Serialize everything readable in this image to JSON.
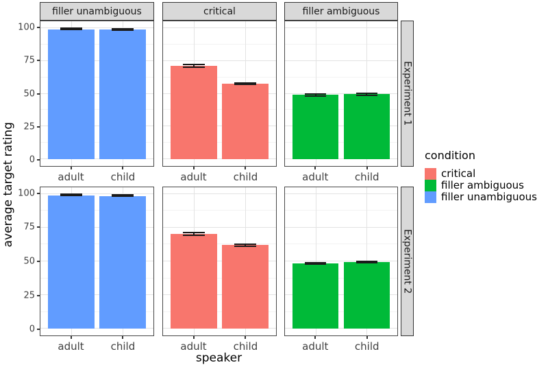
{
  "legend": {
    "title": "condition",
    "entries": [
      {
        "label": "critical",
        "color": "#F8766D"
      },
      {
        "label": "filler ambiguous",
        "color": "#00BA38"
      },
      {
        "label": "filler unambiguous",
        "color": "#619CFF"
      }
    ]
  },
  "chart_data": {
    "type": "bar",
    "title": "",
    "xlabel": "speaker",
    "ylabel": "average target rating",
    "ylim": [
      0,
      100
    ],
    "y_ticks": [
      0,
      25,
      50,
      75,
      100
    ],
    "y_minor_ticks": [
      12.5,
      37.5,
      62.5,
      87.5
    ],
    "categories": [
      "adult",
      "child"
    ],
    "facet_cols": [
      "filler unambiguous",
      "critical",
      "filler ambiguous"
    ],
    "facet_rows": [
      "Experiment 1",
      "Experiment 2"
    ],
    "legend_position": "right",
    "grid": true,
    "error_bars": true,
    "colors": {
      "critical": "#F8766D",
      "filler ambiguous": "#00BA38",
      "filler unambiguous": "#619CFF"
    },
    "panels": [
      {
        "facet_row": "Experiment 1",
        "facet_col": "filler unambiguous",
        "condition": "filler unambiguous",
        "values": [
          99,
          98.5
        ],
        "errors": [
          0.8,
          0.8
        ]
      },
      {
        "facet_row": "Experiment 1",
        "facet_col": "critical",
        "condition": "critical",
        "values": [
          71,
          57.5
        ],
        "errors": [
          1.5,
          1.2
        ]
      },
      {
        "facet_row": "Experiment 1",
        "facet_col": "filler ambiguous",
        "condition": "filler ambiguous",
        "values": [
          49,
          49.5
        ],
        "errors": [
          1.3,
          1.3
        ]
      },
      {
        "facet_row": "Experiment 2",
        "facet_col": "filler unambiguous",
        "condition": "filler unambiguous",
        "values": [
          99,
          98.6
        ],
        "errors": [
          0.6,
          0.6
        ]
      },
      {
        "facet_row": "Experiment 2",
        "facet_col": "critical",
        "condition": "critical",
        "values": [
          70.5,
          62
        ],
        "errors": [
          1.4,
          1.4
        ]
      },
      {
        "facet_row": "Experiment 2",
        "facet_col": "filler ambiguous",
        "condition": "filler ambiguous",
        "values": [
          48.5,
          49.5
        ],
        "errors": [
          1.2,
          1.2
        ]
      }
    ]
  }
}
